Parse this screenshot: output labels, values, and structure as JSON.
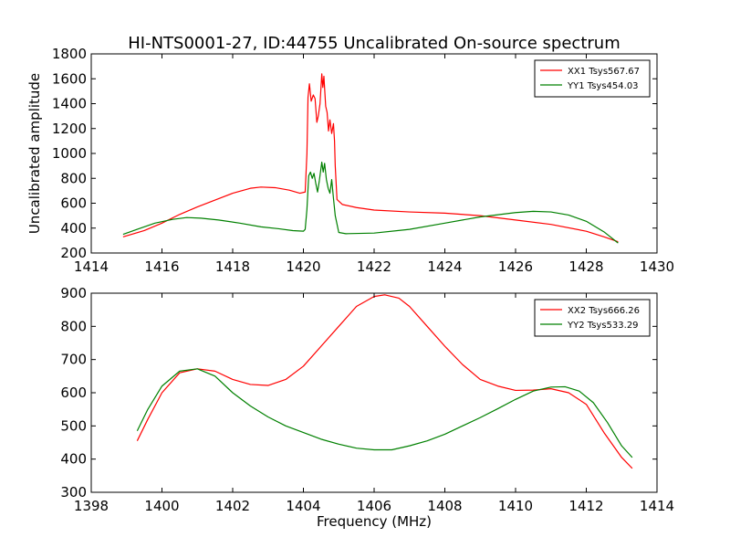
{
  "chart_data": [
    {
      "type": "line",
      "title": "HI-NTS0001-27, ID:44755 Uncalibrated On-source spectrum",
      "xlabel": "",
      "ylabel": "Uncalibrated amplitude",
      "xlim": [
        1414,
        1430
      ],
      "ylim": [
        200,
        1800
      ],
      "xticks": [
        "1414",
        "1416",
        "1418",
        "1420",
        "1422",
        "1424",
        "1426",
        "1428",
        "1430"
      ],
      "yticks": [
        "200",
        "400",
        "600",
        "800",
        "1000",
        "1200",
        "1400",
        "1600",
        "1800"
      ],
      "grid": false,
      "legend_position": "top-right",
      "series": [
        {
          "name": "XX1 Tsys567.67",
          "color": "#ff0000",
          "points": [
            [
              1414.9,
              330
            ],
            [
              1415.5,
              380
            ],
            [
              1416,
              440
            ],
            [
              1416.5,
              510
            ],
            [
              1417,
              570
            ],
            [
              1417.5,
              625
            ],
            [
              1418,
              680
            ],
            [
              1418.5,
              720
            ],
            [
              1418.8,
              730
            ],
            [
              1419.2,
              725
            ],
            [
              1419.6,
              705
            ],
            [
              1419.9,
              680
            ],
            [
              1420.05,
              690
            ],
            [
              1420.1,
              1000
            ],
            [
              1420.13,
              1450
            ],
            [
              1420.17,
              1560
            ],
            [
              1420.22,
              1420
            ],
            [
              1420.28,
              1470
            ],
            [
              1420.33,
              1440
            ],
            [
              1420.38,
              1250
            ],
            [
              1420.42,
              1300
            ],
            [
              1420.47,
              1400
            ],
            [
              1420.52,
              1640
            ],
            [
              1420.55,
              1530
            ],
            [
              1420.58,
              1620
            ],
            [
              1420.63,
              1380
            ],
            [
              1420.67,
              1330
            ],
            [
              1420.71,
              1180
            ],
            [
              1420.75,
              1270
            ],
            [
              1420.8,
              1160
            ],
            [
              1420.85,
              1240
            ],
            [
              1420.88,
              1100
            ],
            [
              1420.9,
              900
            ],
            [
              1420.95,
              630
            ],
            [
              1421.1,
              590
            ],
            [
              1421.5,
              565
            ],
            [
              1422,
              545
            ],
            [
              1423,
              530
            ],
            [
              1424,
              520
            ],
            [
              1424.5,
              510
            ],
            [
              1425,
              500
            ],
            [
              1426,
              465
            ],
            [
              1427,
              430
            ],
            [
              1428,
              375
            ],
            [
              1428.5,
              330
            ],
            [
              1428.9,
              290
            ]
          ]
        },
        {
          "name": "YY1 Tsys454.03",
          "color": "#008000",
          "points": [
            [
              1414.9,
              350
            ],
            [
              1415.3,
              390
            ],
            [
              1415.8,
              440
            ],
            [
              1416.3,
              470
            ],
            [
              1416.7,
              485
            ],
            [
              1417.1,
              480
            ],
            [
              1417.6,
              465
            ],
            [
              1418.2,
              440
            ],
            [
              1418.8,
              410
            ],
            [
              1419.3,
              395
            ],
            [
              1419.7,
              380
            ],
            [
              1420.0,
              375
            ],
            [
              1420.05,
              390
            ],
            [
              1420.1,
              550
            ],
            [
              1420.15,
              820
            ],
            [
              1420.2,
              850
            ],
            [
              1420.25,
              800
            ],
            [
              1420.3,
              840
            ],
            [
              1420.35,
              760
            ],
            [
              1420.4,
              690
            ],
            [
              1420.45,
              780
            ],
            [
              1420.52,
              930
            ],
            [
              1420.56,
              850
            ],
            [
              1420.6,
              920
            ],
            [
              1420.65,
              790
            ],
            [
              1420.7,
              720
            ],
            [
              1420.75,
              680
            ],
            [
              1420.8,
              790
            ],
            [
              1420.85,
              640
            ],
            [
              1420.9,
              500
            ],
            [
              1421.0,
              365
            ],
            [
              1421.2,
              355
            ],
            [
              1422,
              360
            ],
            [
              1423,
              390
            ],
            [
              1424,
              440
            ],
            [
              1425,
              490
            ],
            [
              1426,
              525
            ],
            [
              1426.5,
              535
            ],
            [
              1427,
              530
            ],
            [
              1427.5,
              505
            ],
            [
              1428,
              455
            ],
            [
              1428.5,
              370
            ],
            [
              1428.9,
              280
            ]
          ]
        }
      ]
    },
    {
      "type": "line",
      "title": "",
      "xlabel": "Frequency (MHz)",
      "ylabel": "",
      "xlim": [
        1398,
        1414
      ],
      "ylim": [
        300,
        900
      ],
      "xticks": [
        "1398",
        "1400",
        "1402",
        "1404",
        "1406",
        "1408",
        "1410",
        "1412",
        "1414"
      ],
      "yticks": [
        "300",
        "400",
        "500",
        "600",
        "700",
        "800",
        "900"
      ],
      "grid": false,
      "legend_position": "top-right",
      "series": [
        {
          "name": "XX2 Tsys666.26",
          "color": "#ff0000",
          "points": [
            [
              1399.3,
              455
            ],
            [
              1399.6,
              520
            ],
            [
              1400,
              600
            ],
            [
              1400.5,
              660
            ],
            [
              1401,
              672
            ],
            [
              1401.5,
              665
            ],
            [
              1402,
              640
            ],
            [
              1402.5,
              625
            ],
            [
              1403,
              622
            ],
            [
              1403.5,
              640
            ],
            [
              1404,
              680
            ],
            [
              1404.5,
              740
            ],
            [
              1405,
              800
            ],
            [
              1405.5,
              860
            ],
            [
              1406,
              890
            ],
            [
              1406.3,
              895
            ],
            [
              1406.7,
              885
            ],
            [
              1407,
              860
            ],
            [
              1407.5,
              800
            ],
            [
              1408,
              740
            ],
            [
              1408.5,
              685
            ],
            [
              1409,
              640
            ],
            [
              1409.5,
              620
            ],
            [
              1410,
              607
            ],
            [
              1410.5,
              608
            ],
            [
              1411,
              612
            ],
            [
              1411.5,
              600
            ],
            [
              1412,
              565
            ],
            [
              1412.5,
              480
            ],
            [
              1413,
              405
            ],
            [
              1413.3,
              372
            ]
          ]
        },
        {
          "name": "YY2 Tsys533.29",
          "color": "#008000",
          "points": [
            [
              1399.3,
              485
            ],
            [
              1399.6,
              550
            ],
            [
              1400,
              620
            ],
            [
              1400.5,
              665
            ],
            [
              1401,
              672
            ],
            [
              1401.5,
              650
            ],
            [
              1402,
              600
            ],
            [
              1402.5,
              560
            ],
            [
              1403,
              527
            ],
            [
              1403.5,
              500
            ],
            [
              1404,
              480
            ],
            [
              1404.5,
              460
            ],
            [
              1405,
              445
            ],
            [
              1405.5,
              433
            ],
            [
              1406,
              428
            ],
            [
              1406.5,
              428
            ],
            [
              1407,
              440
            ],
            [
              1407.5,
              455
            ],
            [
              1408,
              475
            ],
            [
              1408.5,
              500
            ],
            [
              1409,
              525
            ],
            [
              1409.5,
              552
            ],
            [
              1410,
              580
            ],
            [
              1410.5,
              605
            ],
            [
              1411,
              617
            ],
            [
              1411.4,
              618
            ],
            [
              1411.8,
              605
            ],
            [
              1412.2,
              570
            ],
            [
              1412.6,
              510
            ],
            [
              1413,
              440
            ],
            [
              1413.3,
              405
            ]
          ]
        }
      ]
    }
  ]
}
